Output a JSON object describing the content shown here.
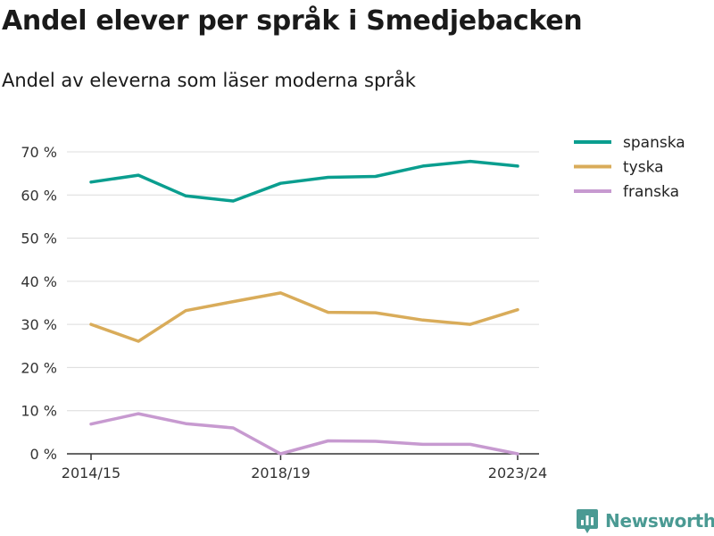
{
  "header": {
    "title": "Andel elever per språk i Smedjebacken",
    "subtitle": "Andel av eleverna som läser moderna språk"
  },
  "brand": {
    "name": "Newsworthy",
    "icon": "newsworthy-logo-icon",
    "color": "#4a9a93"
  },
  "chart_data": {
    "type": "line",
    "title": "Andel elever per språk i Smedjebacken",
    "subtitle": "Andel av eleverna som läser moderna språk",
    "x": [
      "2014/15",
      "2015/16",
      "2016/17",
      "2017/18",
      "2018/19",
      "2019/20",
      "2020/21",
      "2021/22",
      "2022/23",
      "2023/24"
    ],
    "x_tick_labels": [
      "2014/15",
      "2018/19",
      "2023/24"
    ],
    "y_ticks": [
      0,
      10,
      20,
      30,
      40,
      50,
      60,
      70
    ],
    "y_tick_suffix": " %",
    "ylim": [
      0,
      70
    ],
    "grid": true,
    "legend_position": "top-right",
    "series": [
      {
        "name": "spanska",
        "color": "#0a9e8f",
        "values": [
          63.0,
          64.6,
          59.8,
          58.6,
          62.7,
          64.1,
          64.3,
          66.7,
          67.8,
          66.7
        ]
      },
      {
        "name": "tyska",
        "color": "#d9ac5a",
        "values": [
          30.0,
          26.1,
          33.2,
          35.3,
          37.3,
          32.8,
          32.7,
          31.0,
          30.0,
          33.4
        ]
      },
      {
        "name": "franska",
        "color": "#c79ad0",
        "values": [
          6.9,
          9.3,
          7.0,
          6.0,
          0.0,
          3.0,
          2.9,
          2.2,
          2.2,
          0.0
        ]
      }
    ]
  }
}
